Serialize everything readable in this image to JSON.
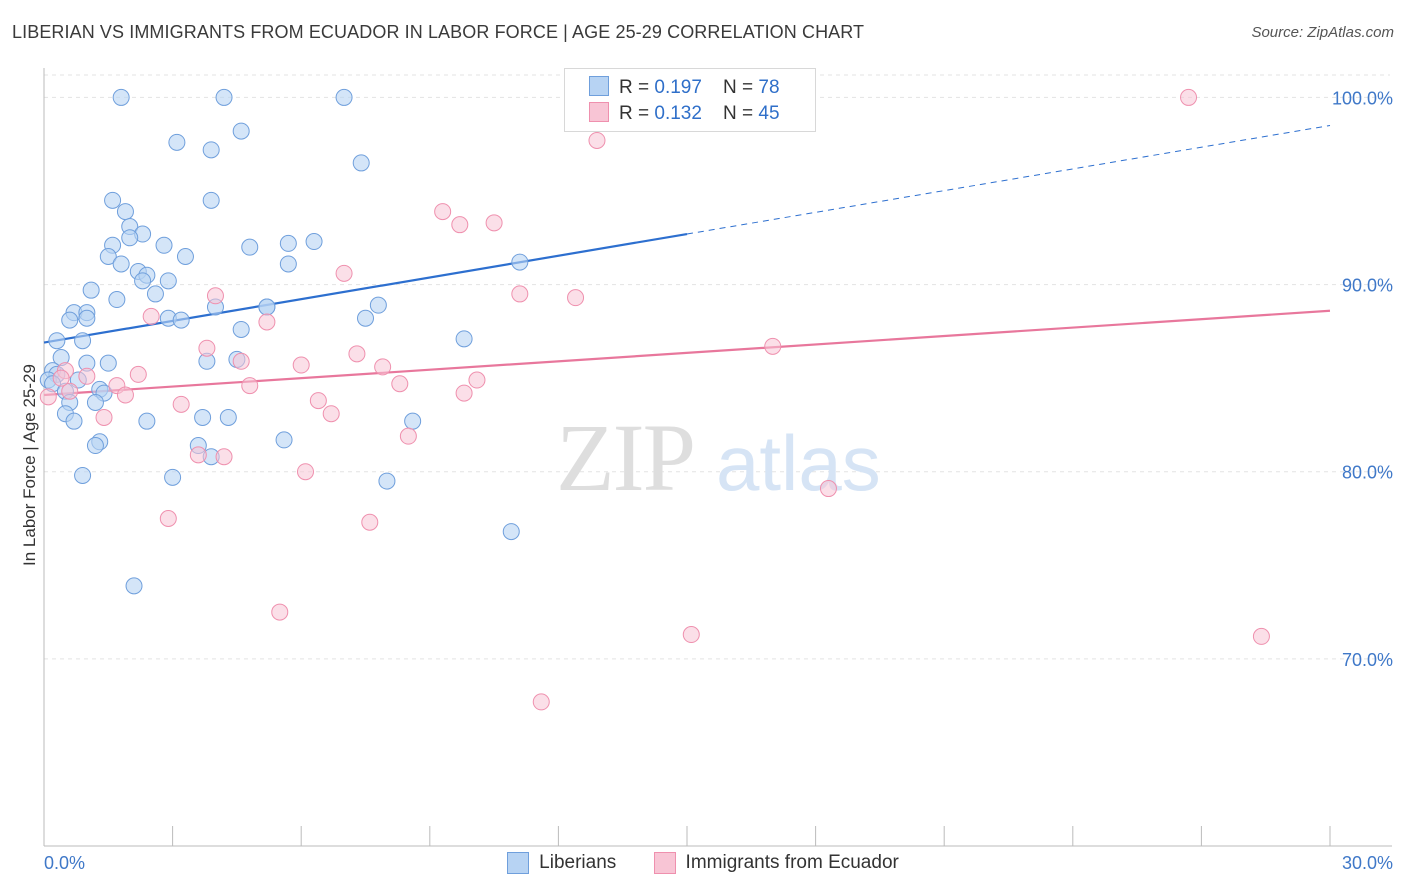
{
  "title": "LIBERIAN VS IMMIGRANTS FROM ECUADOR IN LABOR FORCE | AGE 25-29 CORRELATION CHART",
  "source": "Source: ZipAtlas.com",
  "watermark": {
    "zip": "ZIP",
    "atlas": "atlas"
  },
  "colors": {
    "blue_fill": "#b7d3f3",
    "blue_stroke": "#6f9fdc",
    "blue_line": "#2d6fcf",
    "pink_fill": "#f8c5d5",
    "pink_stroke": "#ef90ae",
    "pink_line": "#e8779c",
    "axis_label": "#3f78c8",
    "grid": "#e3e3e3"
  },
  "legend": {
    "rows": [
      {
        "r_label": "R = ",
        "r_value": "0.197",
        "n_label": "N = ",
        "n_value": "78"
      },
      {
        "r_label": "R = ",
        "r_value": "0.132",
        "n_label": "N = ",
        "n_value": "45"
      }
    ]
  },
  "bottom_legend": [
    "Liberians",
    "Immigrants from Ecuador"
  ],
  "chart_data": {
    "type": "scatter",
    "title": "LIBERIAN VS IMMIGRANTS FROM ECUADOR IN LABOR FORCE | AGE 25-29 CORRELATION CHART",
    "xlabel": "",
    "ylabel": "In Labor Force | Age 25-29",
    "xlim": [
      0,
      30
    ],
    "ylim": [
      60,
      102
    ],
    "x_tick_labels": [
      {
        "value": 0,
        "label": "0.0%"
      },
      {
        "value": 30,
        "label": "30.0%"
      }
    ],
    "y_tick_labels": [
      {
        "value": 70,
        "label": "70.0%"
      },
      {
        "value": 80,
        "label": "80.0%"
      },
      {
        "value": 90,
        "label": "90.0%"
      },
      {
        "value": 100,
        "label": "100.0%"
      }
    ],
    "grid": true,
    "legend_position": "top-center",
    "series": [
      {
        "name": "Liberians",
        "r": 0.197,
        "n": 78,
        "trend": {
          "x0": 0,
          "y0": 86.9,
          "x1": 15,
          "y1": 92.7,
          "dashed_to_x": 30,
          "dashed_to_y": 98.5
        },
        "points": [
          [
            1.8,
            100.0
          ],
          [
            4.2,
            100.0
          ],
          [
            7.0,
            100.0
          ],
          [
            3.1,
            97.6
          ],
          [
            3.9,
            97.2
          ],
          [
            4.6,
            98.2
          ],
          [
            7.4,
            96.5
          ],
          [
            1.6,
            94.5
          ],
          [
            1.9,
            93.9
          ],
          [
            3.9,
            94.5
          ],
          [
            2.0,
            93.1
          ],
          [
            2.3,
            92.7
          ],
          [
            2.0,
            92.5
          ],
          [
            1.6,
            92.1
          ],
          [
            2.8,
            92.1
          ],
          [
            4.8,
            92.0
          ],
          [
            5.7,
            92.2
          ],
          [
            6.3,
            92.3
          ],
          [
            1.5,
            91.5
          ],
          [
            1.8,
            91.1
          ],
          [
            3.3,
            91.5
          ],
          [
            5.7,
            91.1
          ],
          [
            11.1,
            91.2
          ],
          [
            2.2,
            90.7
          ],
          [
            2.4,
            90.5
          ],
          [
            2.3,
            90.2
          ],
          [
            2.9,
            90.2
          ],
          [
            1.1,
            89.7
          ],
          [
            1.7,
            89.2
          ],
          [
            2.6,
            89.5
          ],
          [
            5.2,
            88.8
          ],
          [
            5.2,
            88.8
          ],
          [
            7.8,
            88.9
          ],
          [
            0.7,
            88.5
          ],
          [
            1.0,
            88.5
          ],
          [
            0.6,
            88.1
          ],
          [
            1.0,
            88.2
          ],
          [
            2.9,
            88.2
          ],
          [
            3.2,
            88.1
          ],
          [
            4.0,
            88.8
          ],
          [
            7.5,
            88.2
          ],
          [
            4.6,
            87.6
          ],
          [
            0.3,
            87.0
          ],
          [
            0.9,
            87.0
          ],
          [
            9.8,
            87.1
          ],
          [
            0.4,
            86.1
          ],
          [
            1.0,
            85.8
          ],
          [
            1.5,
            85.8
          ],
          [
            3.8,
            85.9
          ],
          [
            4.5,
            86.0
          ],
          [
            0.2,
            85.4
          ],
          [
            0.3,
            85.2
          ],
          [
            0.1,
            84.9
          ],
          [
            0.8,
            84.9
          ],
          [
            0.2,
            84.7
          ],
          [
            0.5,
            84.3
          ],
          [
            1.3,
            84.4
          ],
          [
            1.4,
            84.2
          ],
          [
            0.6,
            83.7
          ],
          [
            1.2,
            83.7
          ],
          [
            0.5,
            83.1
          ],
          [
            0.7,
            82.7
          ],
          [
            2.4,
            82.7
          ],
          [
            3.7,
            82.9
          ],
          [
            4.3,
            82.9
          ],
          [
            8.6,
            82.7
          ],
          [
            1.3,
            81.6
          ],
          [
            1.2,
            81.4
          ],
          [
            3.6,
            81.4
          ],
          [
            3.9,
            80.8
          ],
          [
            5.6,
            81.7
          ],
          [
            0.9,
            79.8
          ],
          [
            3.0,
            79.7
          ],
          [
            8.0,
            79.5
          ],
          [
            10.9,
            76.8
          ],
          [
            2.1,
            73.9
          ]
        ]
      },
      {
        "name": "Immigrants from Ecuador",
        "r": 0.132,
        "n": 45,
        "trend": {
          "x0": 0,
          "y0": 84.1,
          "x1": 30,
          "y1": 88.6
        },
        "points": [
          [
            15.4,
            100.0
          ],
          [
            26.7,
            100.0
          ],
          [
            12.9,
            97.7
          ],
          [
            9.3,
            93.9
          ],
          [
            9.7,
            93.2
          ],
          [
            10.5,
            93.3
          ],
          [
            7.0,
            90.6
          ],
          [
            11.1,
            89.5
          ],
          [
            12.4,
            89.3
          ],
          [
            4.0,
            89.4
          ],
          [
            2.5,
            88.3
          ],
          [
            5.2,
            88.0
          ],
          [
            3.8,
            86.6
          ],
          [
            4.6,
            85.9
          ],
          [
            7.3,
            86.3
          ],
          [
            6.0,
            85.7
          ],
          [
            7.9,
            85.6
          ],
          [
            17.0,
            86.7
          ],
          [
            2.2,
            85.2
          ],
          [
            0.5,
            85.4
          ],
          [
            0.6,
            84.3
          ],
          [
            0.4,
            85.0
          ],
          [
            1.0,
            85.1
          ],
          [
            1.7,
            84.6
          ],
          [
            1.9,
            84.1
          ],
          [
            4.8,
            84.6
          ],
          [
            8.3,
            84.7
          ],
          [
            10.1,
            84.9
          ],
          [
            9.8,
            84.2
          ],
          [
            0.1,
            84.0
          ],
          [
            3.2,
            83.6
          ],
          [
            6.4,
            83.8
          ],
          [
            6.7,
            83.1
          ],
          [
            1.4,
            82.9
          ],
          [
            8.5,
            81.9
          ],
          [
            3.6,
            80.9
          ],
          [
            4.2,
            80.8
          ],
          [
            6.1,
            80.0
          ],
          [
            18.3,
            79.1
          ],
          [
            2.9,
            77.5
          ],
          [
            7.6,
            77.3
          ],
          [
            5.5,
            72.5
          ],
          [
            15.1,
            71.3
          ],
          [
            28.4,
            71.2
          ],
          [
            11.6,
            67.7
          ]
        ]
      }
    ]
  }
}
